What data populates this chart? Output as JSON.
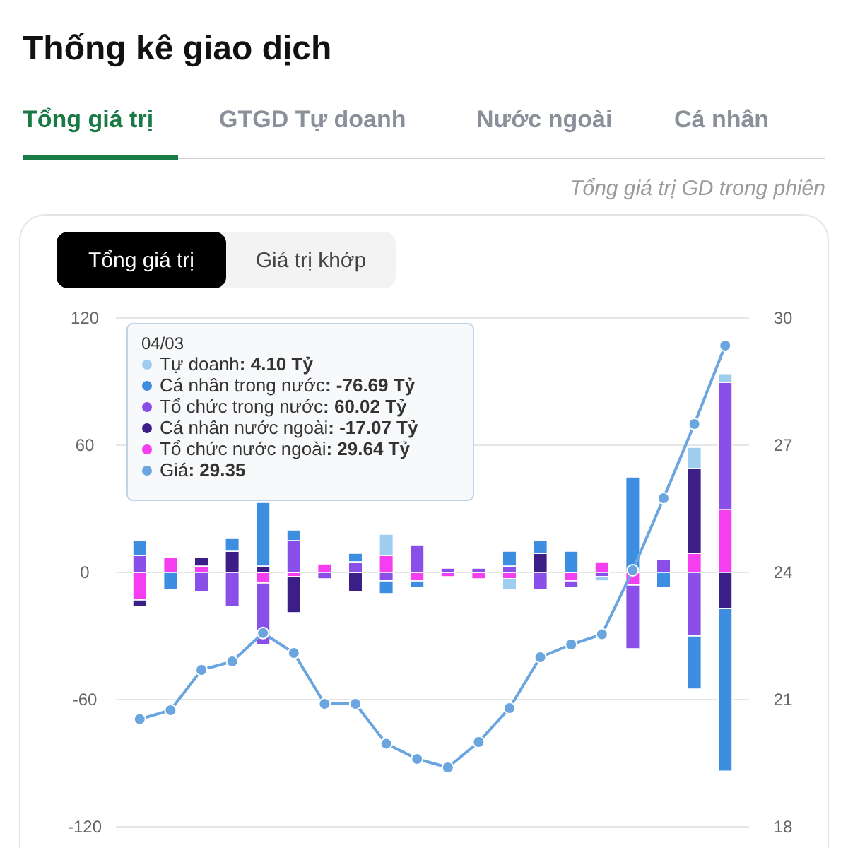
{
  "chart_data": {
    "type": "bar",
    "stacked": true,
    "title": "Thống kê giao dịch",
    "subtitle": "Tổng giá trị GD trong phiên",
    "annotations": [
      "Tổng giá trị",
      "GTGD Tự doanh",
      "Nước ngoài",
      "Cá nhân",
      "Tổng giá trị",
      "Giá trị khớp",
      "04/03",
      ": 4.10 Tỷ",
      ": -76.69 Tỷ",
      ": 60.02 Tỷ",
      ": -17.07 Tỷ",
      ": 29.64 Tỷ",
      ": 29.35"
    ],
    "categories": [
      null,
      null,
      null,
      null,
      null,
      null,
      null,
      null,
      null,
      null,
      null,
      null,
      null,
      null,
      null,
      null,
      null,
      null,
      null,
      null
    ],
    "series": [
      {
        "name": "Tổ chức nước ngoài",
        "color": "#f53ef0",
        "values": [
          -13,
          7,
          3,
          null,
          -5,
          -2,
          4,
          null,
          8,
          -4,
          -2,
          -3,
          -3,
          null,
          -4,
          5,
          -6,
          null,
          9,
          29.64
        ]
      },
      {
        "name": "Cá nhân nước ngoài",
        "color": "#3b1f86",
        "values": [
          -3,
          null,
          4,
          10,
          3,
          -17,
          null,
          -9,
          null,
          null,
          null,
          null,
          null,
          9,
          null,
          null,
          null,
          null,
          40,
          -17.07
        ]
      },
      {
        "name": "Tổ chức trong nước",
        "color": "#8a4fe8",
        "values": [
          8,
          null,
          -9,
          -16,
          -29,
          15,
          -3,
          5,
          -4,
          13,
          2,
          2,
          3,
          -8,
          -3,
          -2,
          -30,
          6,
          -30,
          60.02
        ]
      },
      {
        "name": "Cá nhân trong nước",
        "color": "#3d8ee0",
        "values": [
          7,
          -8,
          null,
          6,
          30,
          5,
          null,
          4,
          -6,
          -3,
          null,
          null,
          7,
          6,
          10,
          null,
          45,
          -7,
          -25,
          -76.69
        ]
      },
      {
        "name": "Tự doanh",
        "color": "#9fcdf0",
        "values": [
          null,
          null,
          null,
          null,
          null,
          null,
          null,
          null,
          10,
          null,
          null,
          null,
          -5,
          null,
          null,
          -2,
          null,
          null,
          10,
          4.1
        ]
      },
      {
        "name": "Giá",
        "type": "line",
        "axis": "y2",
        "color": "#6aa5e0",
        "values": [
          20.54,
          20.75,
          21.7,
          21.9,
          22.57,
          22.1,
          20.9,
          20.9,
          19.96,
          19.6,
          19.4,
          20.0,
          20.8,
          22.0,
          22.3,
          22.54,
          24.05,
          25.75,
          27.5,
          29.35
        ]
      }
    ],
    "ylim": [
      -120,
      120
    ],
    "yticks": [
      -120,
      -60,
      0,
      60,
      120
    ],
    "y2lim": [
      18,
      30
    ],
    "y2ticks": [
      18,
      21,
      24,
      27,
      30
    ],
    "grid": "y",
    "legend": "top left",
    "marker": "circle",
    "line_style": "solid"
  }
}
